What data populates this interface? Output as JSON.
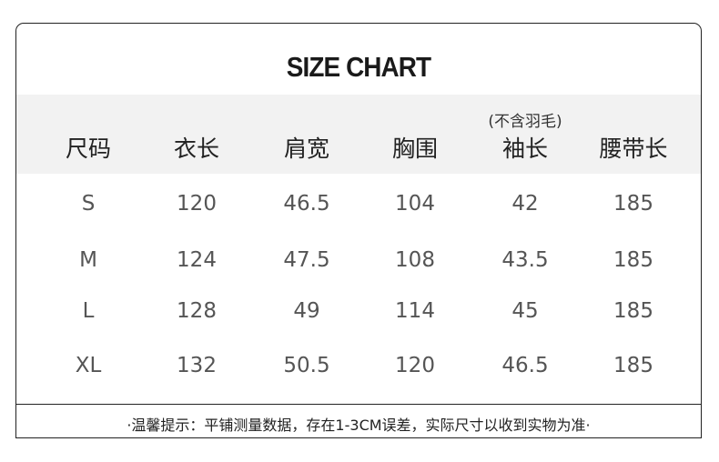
{
  "title": "SIZE CHART",
  "headers": [
    "尺码",
    "衣长",
    "肩宽",
    "胸围",
    "袖长",
    "腰带长"
  ],
  "sleeve_note": "(不含羽毛)",
  "rows": [
    [
      "S",
      "120",
      "46.5",
      "104",
      "42",
      "185"
    ],
    [
      "M",
      "124",
      "47.5",
      "108",
      "43.5",
      "185"
    ],
    [
      "L",
      "128",
      "49",
      "114",
      "45",
      "185"
    ],
    [
      "XL",
      "132",
      "50.5",
      "120",
      "46.5",
      "185"
    ]
  ],
  "footer": "·温馨提示：平铺测量数据，存在1-3CM误差，实际尺寸以收到实物为准·"
}
